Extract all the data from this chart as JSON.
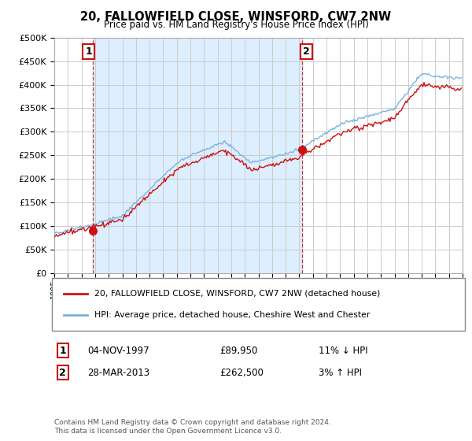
{
  "title": "20, FALLOWFIELD CLOSE, WINSFORD, CW7 2NW",
  "subtitle": "Price paid vs. HM Land Registry's House Price Index (HPI)",
  "legend_line1": "20, FALLOWFIELD CLOSE, WINSFORD, CW7 2NW (detached house)",
  "legend_line2": "HPI: Average price, detached house, Cheshire West and Chester",
  "purchase1_date": "04-NOV-1997",
  "purchase1_price": 89950,
  "purchase1_hpi": "11% ↓ HPI",
  "purchase2_date": "28-MAR-2013",
  "purchase2_price": 262500,
  "purchase2_hpi": "3% ↑ HPI",
  "footer": "Contains HM Land Registry data © Crown copyright and database right 2024.\nThis data is licensed under the Open Government Licence v3.0.",
  "hpi_color": "#7ab3e0",
  "price_color": "#cc1111",
  "vline_color": "#cc1111",
  "shade_color": "#ddeeff",
  "background_color": "#ffffff",
  "grid_color": "#cccccc",
  "ylim": [
    0,
    500000
  ],
  "yticks": [
    0,
    50000,
    100000,
    150000,
    200000,
    250000,
    300000,
    350000,
    400000,
    450000,
    500000
  ],
  "t1": 1997.83,
  "t2": 2013.21
}
